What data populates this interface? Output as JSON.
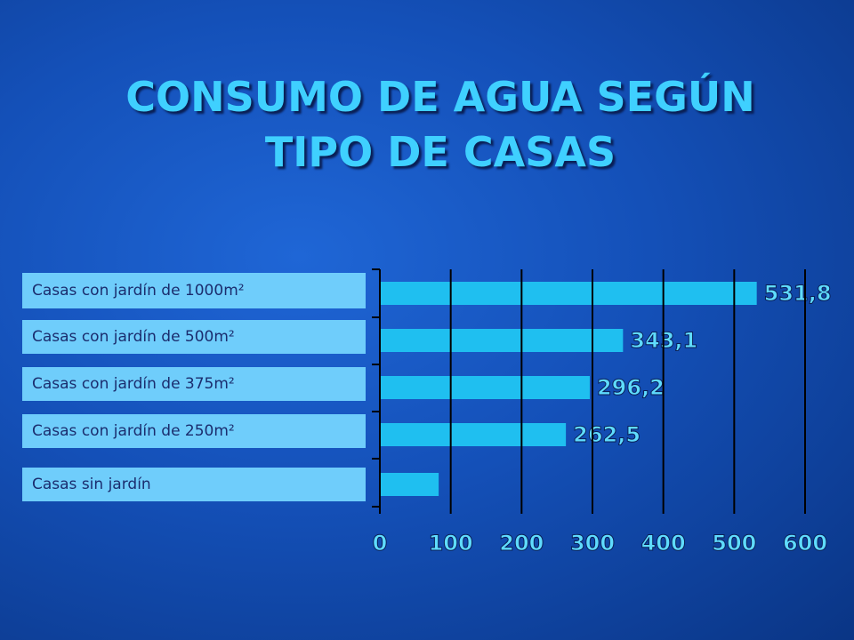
{
  "chart_data": {
    "type": "bar",
    "orientation": "horizontal",
    "title": "CONSUMO DE AGUA SEGÚN TIPO DE CASAS",
    "categories": [
      "Casas con jardín de 1000m²",
      "Casas con jardín de 500m²",
      "Casas con jardín de 375m²",
      "Casas con jardín de 250m²",
      "Casas sin jardín"
    ],
    "values": [
      531.8,
      343.1,
      296.2,
      262.5,
      83
    ],
    "value_labels": [
      "531,8",
      "343,1",
      "296,2",
      "262,5",
      null
    ],
    "color": "#1fbff0",
    "xlim": [
      0,
      600
    ],
    "xticks": [
      0,
      100,
      200,
      300,
      400,
      500,
      600
    ],
    "grid": true
  }
}
